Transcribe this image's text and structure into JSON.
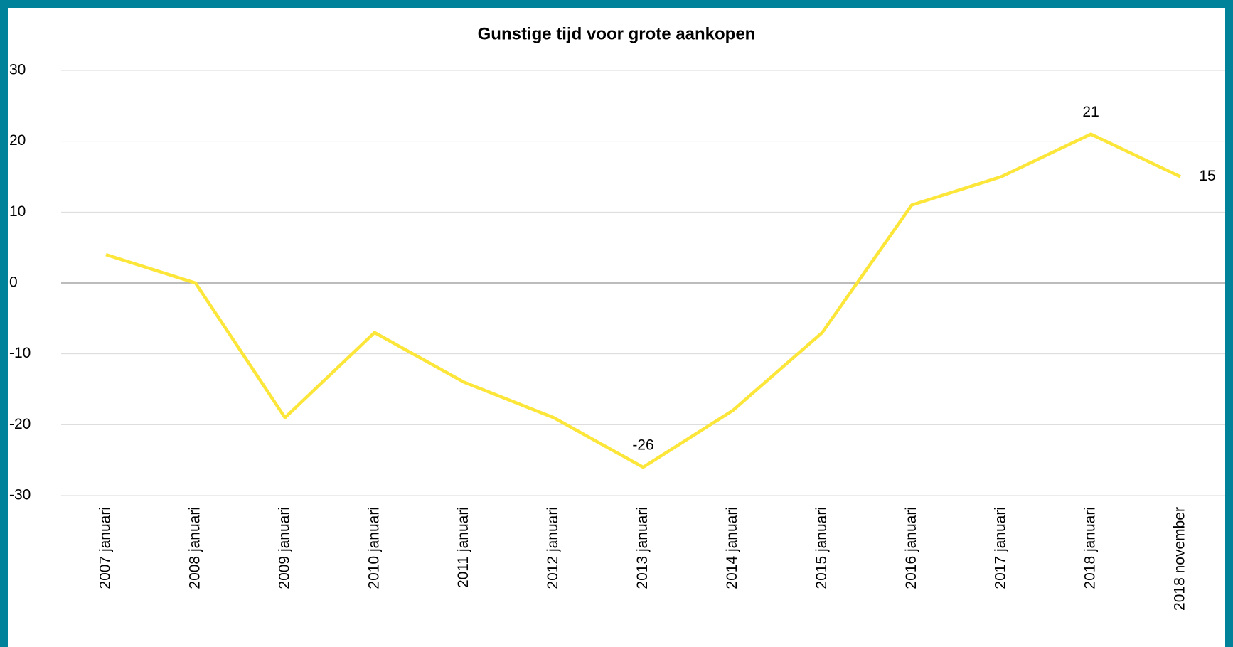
{
  "chart_data": {
    "type": "line",
    "title": "Gunstige tijd voor grote aankopen",
    "categories": [
      "2007 januari",
      "2008 januari",
      "2009 januari",
      "2010 januari",
      "2011 januari",
      "2012 januari",
      "2013 januari",
      "2014 januari",
      "2015 januari",
      "2016 januari",
      "2017 januari",
      "2018 januari",
      "2018 november"
    ],
    "series": [
      {
        "name": "Gunstige tijd voor grote aankopen",
        "color": "#fde63a",
        "values": [
          4,
          0,
          -19,
          -7,
          -14,
          -19,
          -26,
          -18,
          -7,
          11,
          15,
          21,
          15
        ]
      }
    ],
    "data_labels": [
      6,
      11,
      12
    ],
    "ylim": [
      -30,
      30
    ],
    "yticks": [
      -30,
      -20,
      -10,
      0,
      10,
      20,
      30
    ],
    "grid": true
  }
}
